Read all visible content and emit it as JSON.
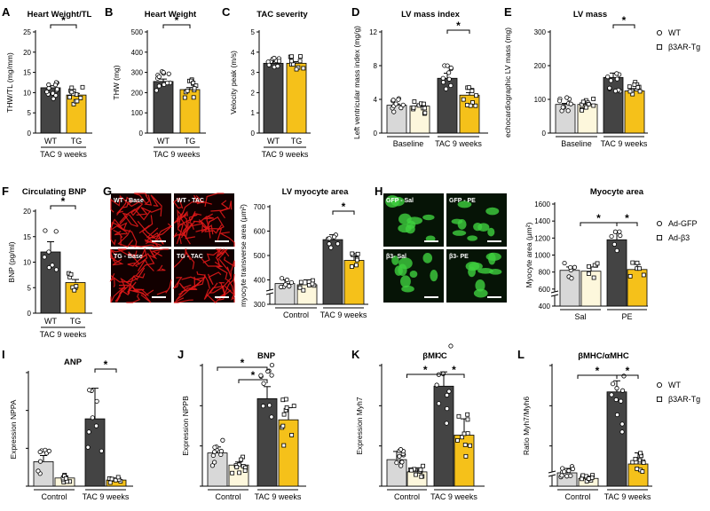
{
  "colors": {
    "wt": "#444444",
    "tg": "#f5c11a",
    "base_wt": "#d8d8d8",
    "base_tg": "#fdf7dc",
    "micro_bg": "#120000",
    "micro_fg": "#e01818",
    "cell_bg": "#061406",
    "cell_fg": "#3fcf3f"
  },
  "chart_data": [
    {
      "id": "A",
      "panel_label": "A",
      "type": "bar",
      "title": "Heart Weight/TL",
      "ylabel": "THW/TL (mg/mm)",
      "ylim": [
        0,
        25
      ],
      "yticks": [
        "0",
        "5",
        "10",
        "15",
        "20",
        "25"
      ],
      "categories": [
        "WT",
        "TG"
      ],
      "group_label": "TAC 9 weeks",
      "values": [
        11.2,
        9.4
      ],
      "errors": [
        0.5,
        0.4
      ],
      "significance": [
        {
          "between": [
            "WT",
            "TG"
          ],
          "label": "*"
        }
      ]
    },
    {
      "id": "B",
      "panel_label": "B",
      "type": "bar",
      "title": "Heart Weight",
      "ylabel": "THW (mg)",
      "ylim": [
        0,
        500
      ],
      "yticks": [
        "0",
        "100",
        "200",
        "300",
        "400",
        "500"
      ],
      "categories": [
        "WT",
        "TG"
      ],
      "group_label": "TAC 9 weeks",
      "values": [
        255,
        215
      ],
      "errors": [
        12,
        10
      ],
      "significance": [
        {
          "between": [
            "WT",
            "TG"
          ],
          "label": "*"
        }
      ]
    },
    {
      "id": "C",
      "panel_label": "C",
      "type": "bar",
      "title": "TAC severity",
      "ylabel": "Velocity peak (m/s)",
      "ylim": [
        0,
        5
      ],
      "yticks": [
        "0",
        "1",
        "2",
        "3",
        "4",
        "5"
      ],
      "categories": [
        "WT",
        "TG"
      ],
      "group_label": "TAC 9 weeks",
      "values": [
        3.45,
        3.45
      ],
      "errors": [
        0.08,
        0.08
      ],
      "significance": []
    },
    {
      "id": "D",
      "panel_label": "D",
      "type": "bar",
      "title": "LV mass index",
      "ylabel": "Left ventricular mass index (mg/g)",
      "ylim": [
        0,
        12
      ],
      "yticks": [
        "0",
        "4",
        "8",
        "12"
      ],
      "groups": [
        "Baseline",
        "TAC 9 weeks"
      ],
      "series": [
        {
          "name": "WT",
          "values": [
            3.3,
            6.5
          ],
          "errors": [
            0.15,
            0.6
          ]
        },
        {
          "name": "β3AR-Tg",
          "values": [
            3.2,
            4.5
          ],
          "errors": [
            0.15,
            0.3
          ]
        }
      ],
      "significance": [
        {
          "group": "TAC 9 weeks",
          "label": "*"
        }
      ]
    },
    {
      "id": "E",
      "panel_label": "E",
      "type": "bar",
      "title": "LV mass",
      "ylabel": "echocardiographic LV mass (mg)",
      "ylim": [
        0,
        300
      ],
      "yticks": [
        "0",
        "100",
        "200",
        "300"
      ],
      "groups": [
        "Baseline",
        "TAC 9 weeks"
      ],
      "series": [
        {
          "name": "WT",
          "values": [
            85,
            165
          ],
          "errors": [
            3,
            13
          ]
        },
        {
          "name": "β3AR-Tg",
          "values": [
            85,
            125
          ],
          "errors": [
            3,
            7
          ]
        }
      ],
      "legend": [
        "WT",
        "β3AR-Tg"
      ],
      "significance": [
        {
          "group": "TAC 9 weeks",
          "label": "*"
        }
      ]
    },
    {
      "id": "F",
      "panel_label": "F",
      "type": "bar",
      "title": "Circulating BNP",
      "ylabel": "BNP (pg/ml)",
      "ylim": [
        0,
        20
      ],
      "yticks": [
        "0",
        "5",
        "10",
        "15",
        "20"
      ],
      "categories": [
        "WT",
        "TG"
      ],
      "group_label": "TAC 9 weeks",
      "values": [
        12.0,
        6.0
      ],
      "errors": [
        2.0,
        0.6
      ],
      "significance": [
        {
          "between": [
            "WT",
            "TG"
          ],
          "label": "*"
        }
      ]
    },
    {
      "id": "G",
      "panel_label": "G",
      "type": "bar",
      "title": "LV myocyte area",
      "ylabel": "myocyte transverse area (μm²)",
      "ylim": [
        300,
        700
      ],
      "yticks": [
        "300",
        "400",
        "500",
        "600",
        "700"
      ],
      "axis_break": true,
      "groups": [
        "Control",
        "TAC 9 weeks"
      ],
      "series": [
        {
          "name": "WT",
          "values": [
            385,
            565
          ],
          "errors": [
            15,
            20
          ]
        },
        {
          "name": "β3AR-Tg",
          "values": [
            380,
            480
          ],
          "errors": [
            20,
            17
          ]
        }
      ],
      "significance": [
        {
          "group": "TAC 9 weeks",
          "label": "*"
        }
      ],
      "micrographs": [
        "WT - Base",
        "WT - TAC",
        "TG - Base",
        "TG - TAC"
      ]
    },
    {
      "id": "H",
      "panel_label": "H",
      "type": "bar",
      "title": "Myocyte area",
      "ylabel": "Myocyte area (μm²)",
      "ylim": [
        400,
        1600
      ],
      "yticks": [
        "400",
        "600",
        "800",
        "1000",
        "1200",
        "1400",
        "1600"
      ],
      "axis_break": true,
      "groups": [
        "Sal",
        "PE"
      ],
      "series": [
        {
          "name": "Ad-GFP",
          "values": [
            820,
            1180
          ],
          "errors": [
            40,
            80
          ]
        },
        {
          "name": "Ad-β3",
          "values": [
            810,
            830
          ],
          "errors": [
            50,
            60
          ]
        }
      ],
      "legend": [
        "Ad-GFP",
        "Ad-β3"
      ],
      "significance": [
        {
          "between_groups": [
            "Sal",
            "PE"
          ],
          "label": "*"
        },
        {
          "group": "PE",
          "label": "*"
        }
      ],
      "micrographs": [
        "GFP - Sal",
        "GFP - PE",
        "β3- Sal",
        "β3- PE"
      ]
    },
    {
      "id": "I",
      "panel_label": "I",
      "type": "bar",
      "title": "ANP",
      "ylabel": "Expression NPPA",
      "yticks": [],
      "groups": [
        "Control",
        "TAC 9 weeks"
      ],
      "series": [
        {
          "name": "WT",
          "values": [
            0.12,
            0.33
          ],
          "errors": [
            0.03,
            0.15
          ]
        },
        {
          "name": "β3AR-Tg",
          "values": [
            0.04,
            0.03
          ],
          "errors": [
            0.01,
            0.01
          ]
        }
      ],
      "significance": [
        {
          "group": "TAC 9 weeks",
          "label": "*"
        }
      ]
    },
    {
      "id": "J",
      "panel_label": "J",
      "type": "bar",
      "title": "BNP",
      "ylabel": "Expression NPPB",
      "yticks": [],
      "groups": [
        "Control",
        "TAC 9 weeks"
      ],
      "series": [
        {
          "name": "WT",
          "values": [
            0.11,
            0.29
          ],
          "errors": [
            0.02,
            0.04
          ]
        },
        {
          "name": "β3AR-Tg",
          "values": [
            0.07,
            0.22
          ],
          "errors": [
            0.01,
            0.04
          ]
        }
      ],
      "significance": [
        {
          "between": [
            "Control WT",
            "TAC 9 weeks WT"
          ],
          "label": "*"
        },
        {
          "between": [
            "Control β3AR-Tg",
            "TAC 9 weeks WT"
          ],
          "label": "*"
        }
      ]
    },
    {
      "id": "K",
      "panel_label": "K",
      "type": "bar",
      "title": "βMHC",
      "ylabel": "Expression Myh7",
      "yticks": [],
      "groups": [
        "Control",
        "TAC 9 weeks"
      ],
      "series": [
        {
          "name": "WT",
          "values": [
            0.13,
            0.49
          ],
          "errors": [
            0.04,
            0.07
          ]
        },
        {
          "name": "β3AR-Tg",
          "values": [
            0.07,
            0.25
          ],
          "errors": [
            0.02,
            0.08
          ]
        }
      ],
      "significance": [
        {
          "between_groups": [
            "Control",
            "TAC 9 weeks"
          ],
          "label": "*"
        },
        {
          "group": "TAC 9 weeks",
          "label": "*"
        }
      ]
    },
    {
      "id": "L",
      "panel_label": "L",
      "type": "bar",
      "title": "βMHC/αMHC",
      "ylabel": "Ratio Myh7/Myh6",
      "yticks": [],
      "axis_break": true,
      "groups": [
        "Control",
        "TAC 9 weeks"
      ],
      "series": [
        {
          "name": "WT",
          "values": [
            0.12,
            0.85
          ],
          "errors": [
            0.04,
            0.1
          ]
        },
        {
          "name": "β3AR-Tg",
          "values": [
            0.07,
            0.2
          ],
          "errors": [
            0.02,
            0.1
          ]
        }
      ],
      "legend": [
        "WT",
        "β3AR-Tg"
      ],
      "significance": [
        {
          "between_groups": [
            "Control",
            "TAC 9 weeks"
          ],
          "label": "*"
        },
        {
          "group": "TAC 9 weeks",
          "label": "*"
        }
      ]
    }
  ]
}
